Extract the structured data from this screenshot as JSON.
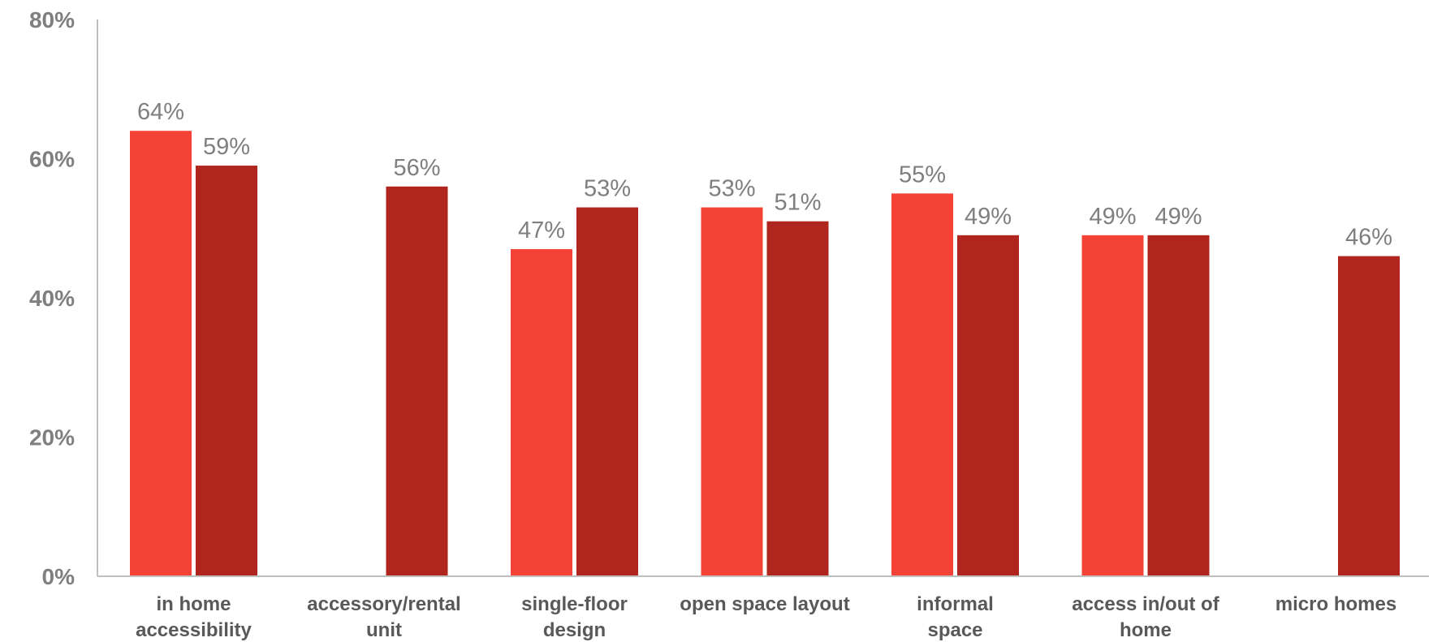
{
  "chart_data": {
    "type": "bar",
    "title": "",
    "xlabel": "",
    "ylabel": "",
    "ylim": [
      0,
      80
    ],
    "yticks": [
      "0%",
      "20%",
      "40%",
      "60%",
      "80%"
    ],
    "grid": false,
    "legend": "none",
    "categories": [
      [
        "in home",
        "accessibility"
      ],
      [
        "accessory/rental",
        "unit"
      ],
      [
        "single-floor",
        "design"
      ],
      [
        "open space layout"
      ],
      [
        "informal",
        "space"
      ],
      [
        "access in/out of",
        "home"
      ],
      [
        "micro homes"
      ]
    ],
    "series": [
      {
        "color": "#f44336",
        "values": [
          64,
          null,
          47,
          53,
          55,
          49,
          null
        ],
        "value_labels": [
          "64%",
          "",
          "47%",
          "53%",
          "55%",
          "49%",
          ""
        ]
      },
      {
        "color": "#b0251e",
        "values": [
          59,
          56,
          53,
          51,
          49,
          49,
          46
        ],
        "value_labels": [
          "59%",
          "56%",
          "53%",
          "51%",
          "49%",
          "49%",
          "46%"
        ]
      }
    ]
  }
}
